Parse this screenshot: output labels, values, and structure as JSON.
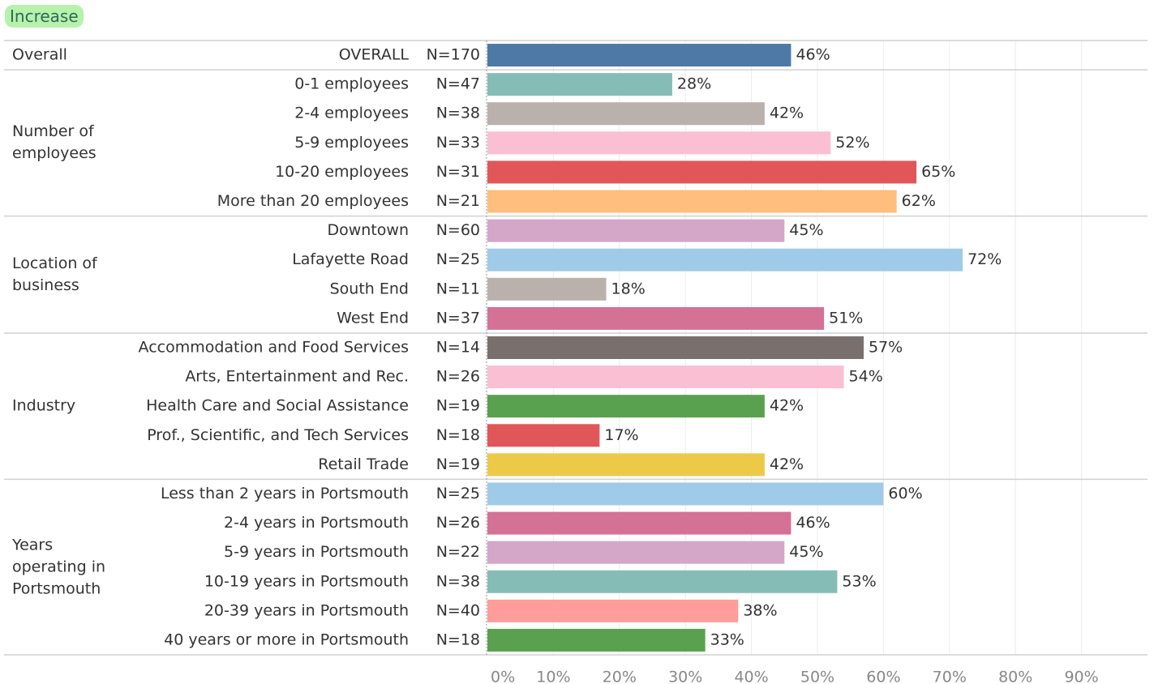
{
  "highlight": "Increase",
  "chart_data": {
    "type": "bar",
    "orientation": "horizontal",
    "xlim": [
      0,
      100
    ],
    "xticks": [
      {
        "value": 0,
        "label": "0%"
      },
      {
        "value": 10,
        "label": "10%"
      },
      {
        "value": 20,
        "label": "20%"
      },
      {
        "value": 30,
        "label": "30%"
      },
      {
        "value": 40,
        "label": "40%"
      },
      {
        "value": 50,
        "label": "50%"
      },
      {
        "value": 60,
        "label": "60%"
      },
      {
        "value": 70,
        "label": "70%"
      },
      {
        "value": 80,
        "label": "80%"
      },
      {
        "value": 90,
        "label": "90%"
      }
    ],
    "grid": true,
    "groups": [
      {
        "name": "Overall",
        "categories": [
          "OVERALL"
        ],
        "n": [
          "N=170"
        ],
        "values": [
          46
        ],
        "value_labels": [
          "46%"
        ],
        "colors": [
          "#4e79a7"
        ]
      },
      {
        "name": "Number of employees",
        "categories": [
          "0-1 employees",
          "2-4 employees",
          "5-9 employees",
          "10-20 employees",
          "More than 20 employees"
        ],
        "n": [
          "N=47",
          "N=38",
          "N=33",
          "N=31",
          "N=21"
        ],
        "values": [
          28,
          42,
          52,
          65,
          62
        ],
        "value_labels": [
          "28%",
          "42%",
          "52%",
          "65%",
          "62%"
        ],
        "colors": [
          "#86bcb6",
          "#bab0ac",
          "#fabfd2",
          "#e15759",
          "#ffbe7d"
        ]
      },
      {
        "name": "Location of business",
        "categories": [
          "Downtown",
          "Lafayette Road",
          "South End",
          "West End"
        ],
        "n": [
          "N=60",
          "N=25",
          "N=11",
          "N=37"
        ],
        "values": [
          45,
          72,
          18,
          51
        ],
        "value_labels": [
          "45%",
          "72%",
          "18%",
          "51%"
        ],
        "colors": [
          "#d4a6c8",
          "#a0cbe8",
          "#bab0ac",
          "#d37295"
        ]
      },
      {
        "name": "Industry",
        "categories": [
          "Accommodation and Food Services",
          "Arts, Entertainment and Rec.",
          "Health Care and Social Assistance",
          "Prof., Scientific, and Tech Services",
          "Retail Trade"
        ],
        "n": [
          "N=14",
          "N=26",
          "N=19",
          "N=18",
          "N=19"
        ],
        "values": [
          57,
          54,
          42,
          17,
          42
        ],
        "value_labels": [
          "57%",
          "54%",
          "42%",
          "17%",
          "42%"
        ],
        "colors": [
          "#79706e",
          "#fabfd2",
          "#59a14f",
          "#e15759",
          "#edc948"
        ]
      },
      {
        "name": "Years operating in Portsmouth",
        "categories": [
          "Less than 2 years in Portsmouth",
          "2-4 years in Portsmouth",
          "5-9 years in Portsmouth",
          "10-19 years in Portsmouth",
          "20-39 years in Portsmouth",
          "40 years or more in Portsmouth"
        ],
        "n": [
          "N=25",
          "N=26",
          "N=22",
          "N=38",
          "N=40",
          "N=18"
        ],
        "values": [
          60,
          46,
          45,
          53,
          38,
          33
        ],
        "value_labels": [
          "60%",
          "46%",
          "45%",
          "53%",
          "38%",
          "33%"
        ],
        "colors": [
          "#a0cbe8",
          "#d37295",
          "#d4a6c8",
          "#86bcb6",
          "#ff9d9a",
          "#59a14f"
        ]
      }
    ]
  }
}
